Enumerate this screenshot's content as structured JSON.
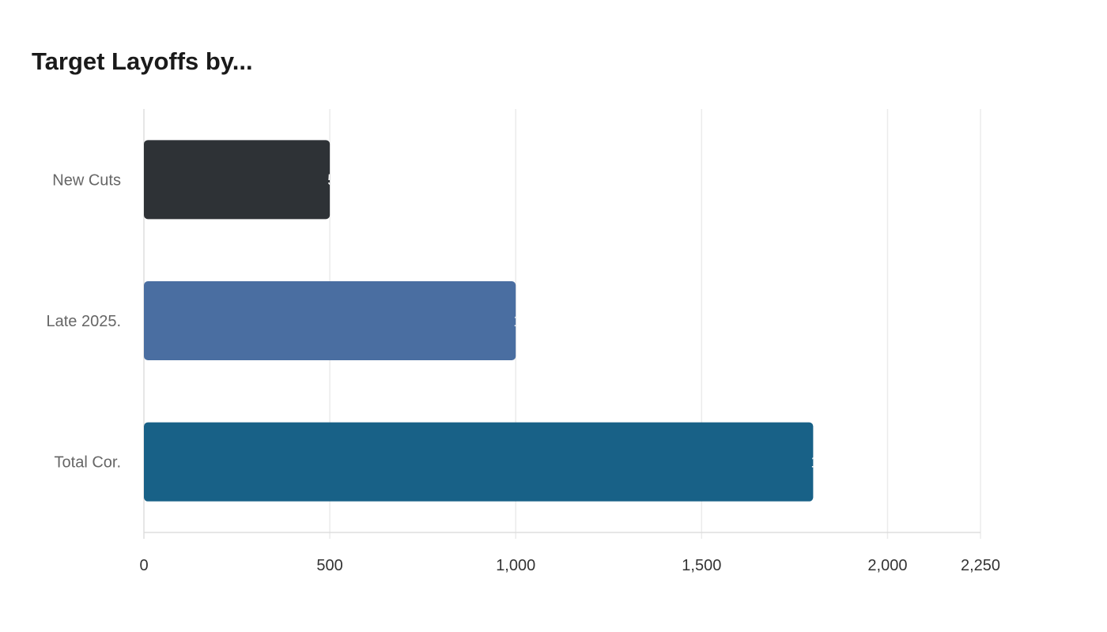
{
  "chart_data": {
    "type": "bar",
    "orientation": "horizontal",
    "title": "Target Layoffs by...",
    "categories": [
      "New Cuts",
      "Late 2025.",
      "Total Cor."
    ],
    "values": [
      500,
      1000,
      1800
    ],
    "data_labels": [
      "500",
      "1,000",
      "1,800"
    ],
    "colors": [
      "#2e3236",
      "#4a6ea1",
      "#186187"
    ],
    "xlim": [
      0,
      2250
    ],
    "xticks": [
      0,
      500,
      1000,
      1500,
      2000,
      2250
    ],
    "xtick_labels": [
      "0",
      "500",
      "1,000",
      "1,500",
      "2,000",
      "2,250"
    ],
    "grid": true,
    "xlabel": "",
    "ylabel": ""
  }
}
